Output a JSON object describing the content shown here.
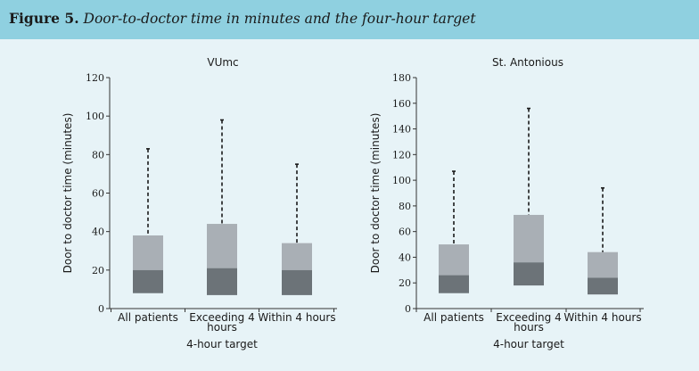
{
  "figure": {
    "label": "Figure 5.",
    "caption": "Door-to-doctor time in minutes and the four-hour target"
  },
  "colors": {
    "title_bar": "#8fd0e0",
    "background": "#e7f3f7",
    "box_upper": "#a9afb5",
    "box_lower": "#6c7378",
    "whisker": "#1a1a1a"
  },
  "chart_data": [
    {
      "type": "box",
      "title": "VUmc",
      "ylabel": "Door to doctor time (minutes)",
      "xlabel": "4-hour target",
      "ylim": [
        0,
        120
      ],
      "yticks": [
        0,
        20,
        40,
        60,
        80,
        100,
        120
      ],
      "categories": [
        "All patients",
        "Exceeding 4 hours",
        "Within 4 hours"
      ],
      "boxes": [
        {
          "q1": 8,
          "median": 20,
          "q3": 38,
          "whisker_high": 83
        },
        {
          "q1": 7,
          "median": 21,
          "q3": 44,
          "whisker_high": 98
        },
        {
          "q1": 7,
          "median": 20,
          "q3": 34,
          "whisker_high": 75
        }
      ]
    },
    {
      "type": "box",
      "title": "St. Antonious",
      "ylabel": "Door to doctor time (minutes)",
      "xlabel": "4-hour target",
      "ylim": [
        0,
        180
      ],
      "yticks": [
        0,
        20,
        40,
        60,
        80,
        100,
        120,
        140,
        160,
        180
      ],
      "categories": [
        "All patients",
        "Exceeding 4 hours",
        "Within 4 hours"
      ],
      "boxes": [
        {
          "q1": 12,
          "median": 26,
          "q3": 50,
          "whisker_high": 107
        },
        {
          "q1": 18,
          "median": 36,
          "q3": 73,
          "whisker_high": 156
        },
        {
          "q1": 11,
          "median": 24,
          "q3": 44,
          "whisker_high": 94
        }
      ]
    }
  ]
}
